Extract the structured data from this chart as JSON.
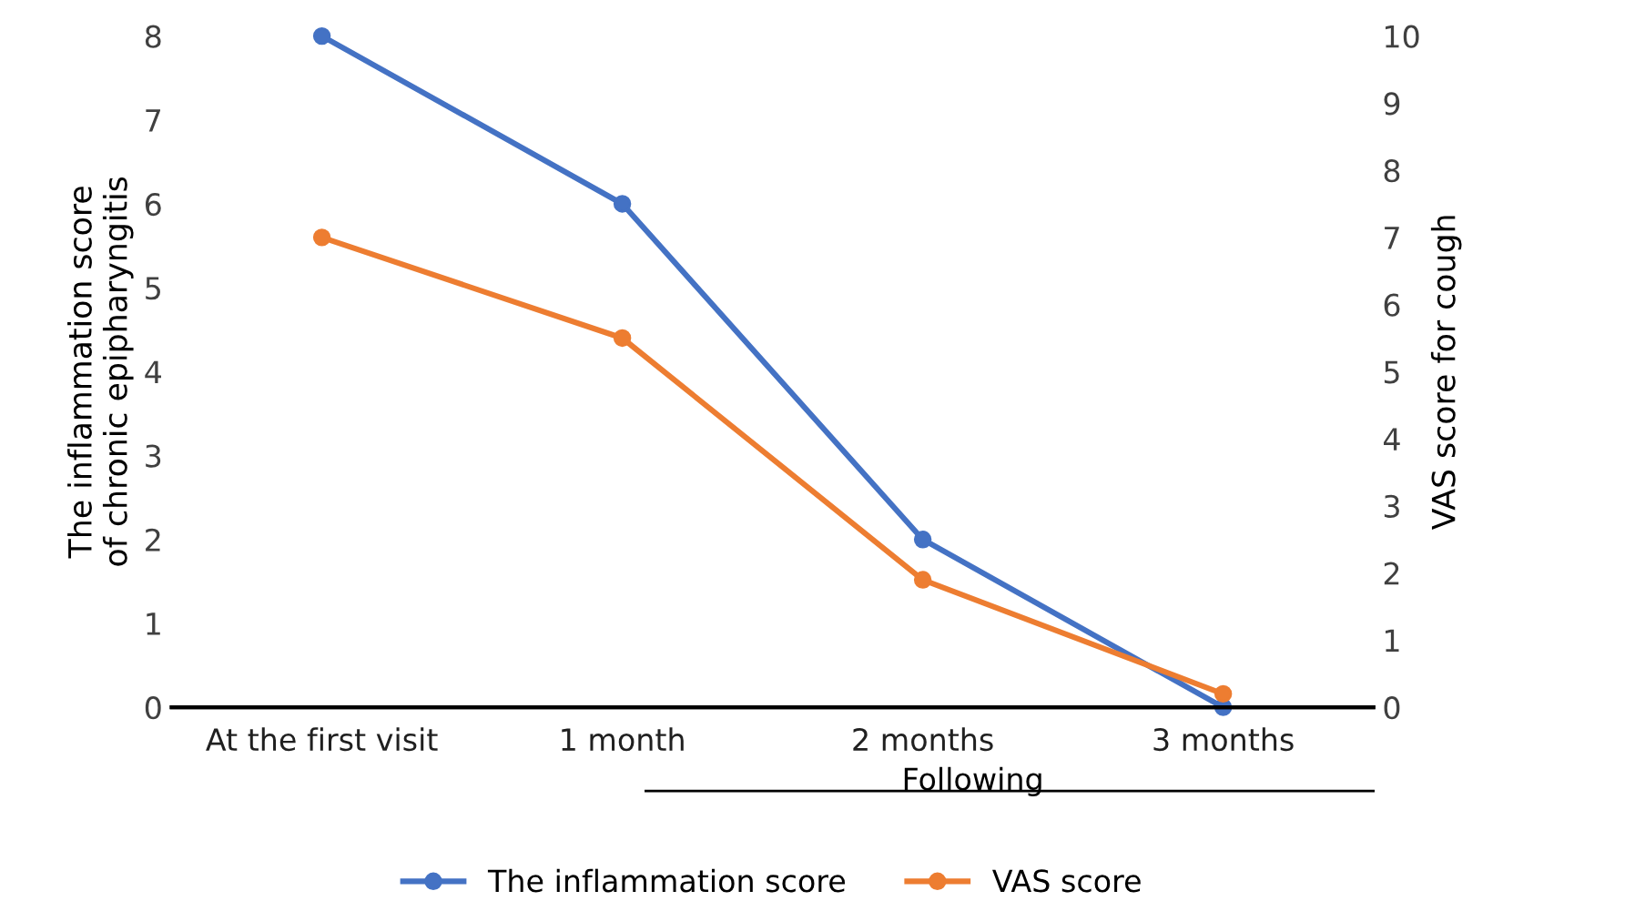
{
  "chart_data": {
    "type": "line",
    "categories": [
      "At the first visit",
      "1 month",
      "2 months",
      "3 months"
    ],
    "xlabel": "Following",
    "ylabel": "The inflammation score\nof chronic epipharyngitis",
    "y2label": "VAS score for cough",
    "series": [
      {
        "name": "The inflammation score",
        "color": "#4472c4",
        "values": [
          8,
          6,
          2,
          0
        ]
      },
      {
        "name": "VAS score",
        "color": "#ed7d31",
        "values": [
          7,
          5.5,
          1.9,
          0.2
        ],
        "axis": "y2"
      }
    ],
    "ylim": [
      0,
      8
    ],
    "yticks": [
      0,
      1,
      2,
      3,
      4,
      5,
      6,
      7,
      8
    ],
    "y2lim": [
      0,
      10
    ],
    "y2ticks": [
      0,
      1,
      2,
      3,
      4,
      5,
      6,
      7,
      8,
      9,
      10
    ],
    "marker": "circle",
    "line_style": "solid",
    "grid": false,
    "legend": "bottom"
  }
}
